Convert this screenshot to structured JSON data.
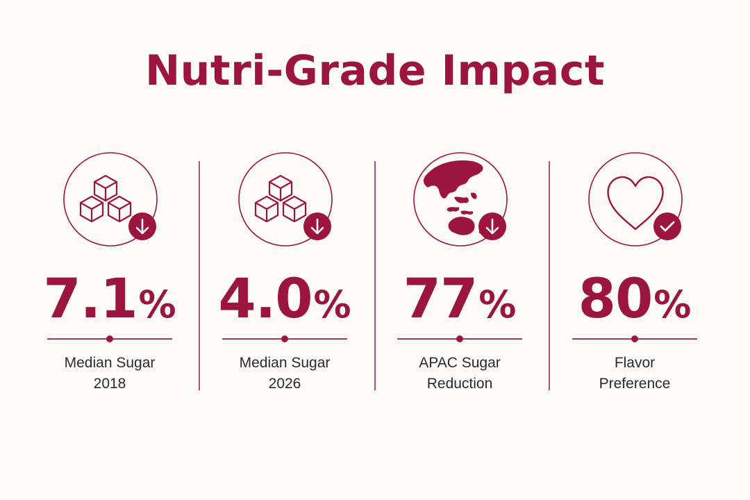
{
  "title": "Nutri-Grade Impact",
  "accent_color": "#9b1540",
  "text_color": "#2a2a2a",
  "background_color": "#fcfbfa",
  "stats": [
    {
      "value": "7.1",
      "unit": "%",
      "label_line1": "Median Sugar",
      "label_line2": "2018",
      "icon": "sugar-cubes-icon",
      "badge": "down-arrow-badge-icon"
    },
    {
      "value": "4.0",
      "unit": "%",
      "label_line1": "Median Sugar",
      "label_line2": "2026",
      "icon": "sugar-cubes-icon",
      "badge": "down-arrow-badge-icon"
    },
    {
      "value": "77",
      "unit": "%",
      "label_line1": "APAC Sugar",
      "label_line2": "Reduction",
      "icon": "globe-apac-icon",
      "badge": "down-arrow-badge-icon"
    },
    {
      "value": "80",
      "unit": "%",
      "label_line1": "Flavor",
      "label_line2": "Preference",
      "icon": "heart-icon",
      "badge": "checkmark-badge-icon"
    }
  ]
}
